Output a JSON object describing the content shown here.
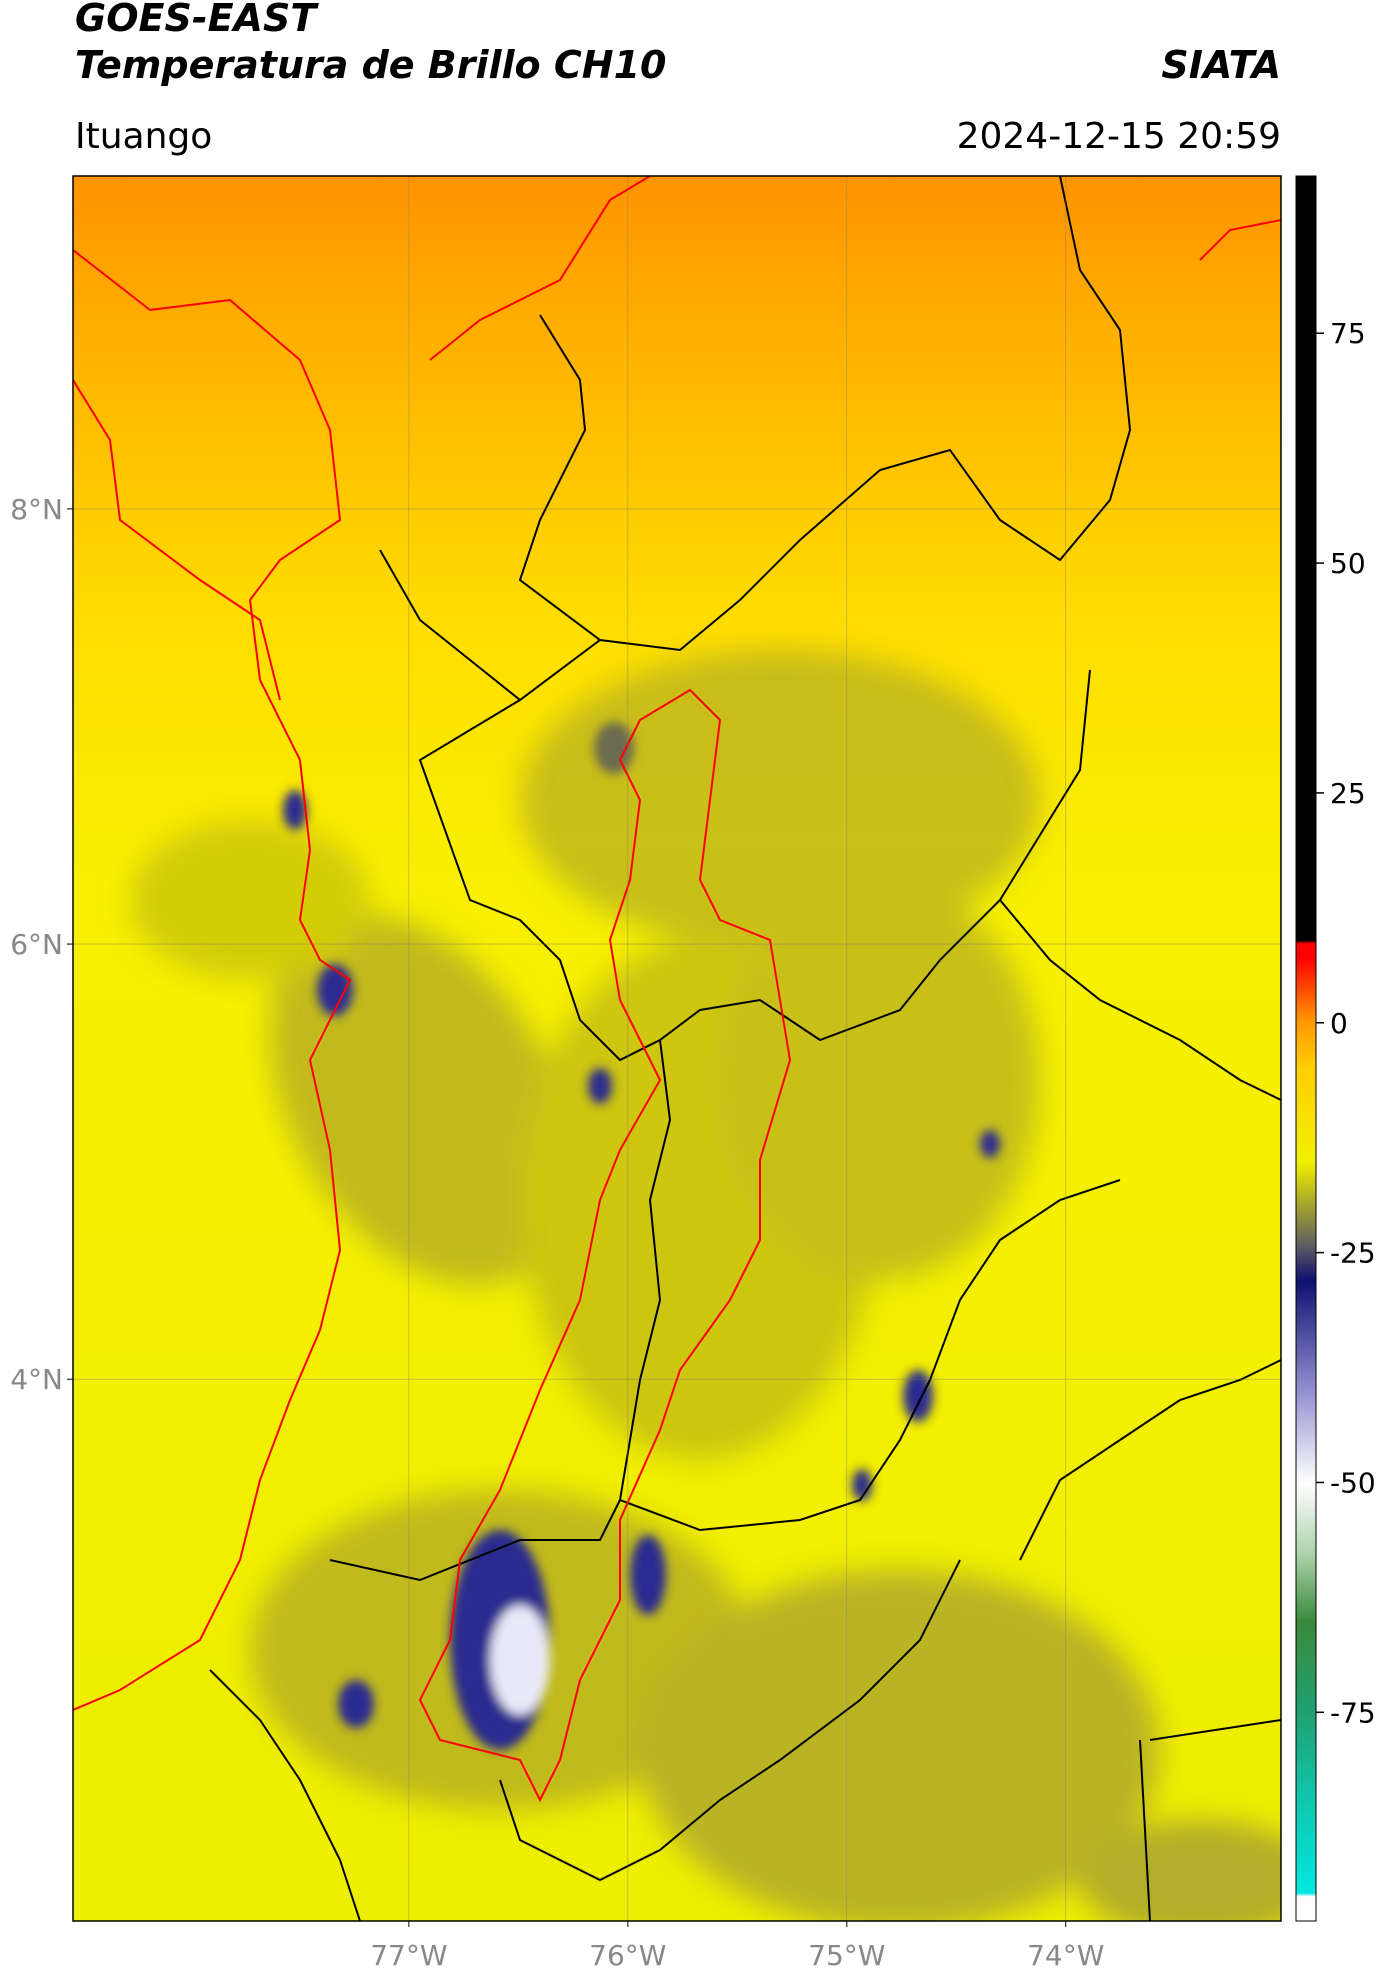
{
  "header": {
    "title": "GOES-EAST",
    "subtitle": "Temperatura de Brillo CH10",
    "brand": "SIATA",
    "location": "Ituango",
    "datetime": "2024-12-15 20:59"
  },
  "map": {
    "xlim": [
      -78.534,
      -73.017
    ],
    "ylim": [
      1.51,
      9.53
    ],
    "xticks": [
      {
        "value": -77,
        "label": "77°W"
      },
      {
        "value": -76,
        "label": "76°W"
      },
      {
        "value": -75,
        "label": "75°W"
      },
      {
        "value": -74,
        "label": "74°W"
      }
    ],
    "yticks": [
      {
        "value": 4,
        "label": "4°N"
      },
      {
        "value": 6,
        "label": "6°N"
      },
      {
        "value": 8,
        "label": "8°N"
      }
    ],
    "grid": true
  },
  "colorbar": {
    "lim": [
      -97.7,
      92.1
    ],
    "ticks": [
      -75,
      -50,
      -25,
      0,
      25,
      50,
      75
    ]
  }
}
